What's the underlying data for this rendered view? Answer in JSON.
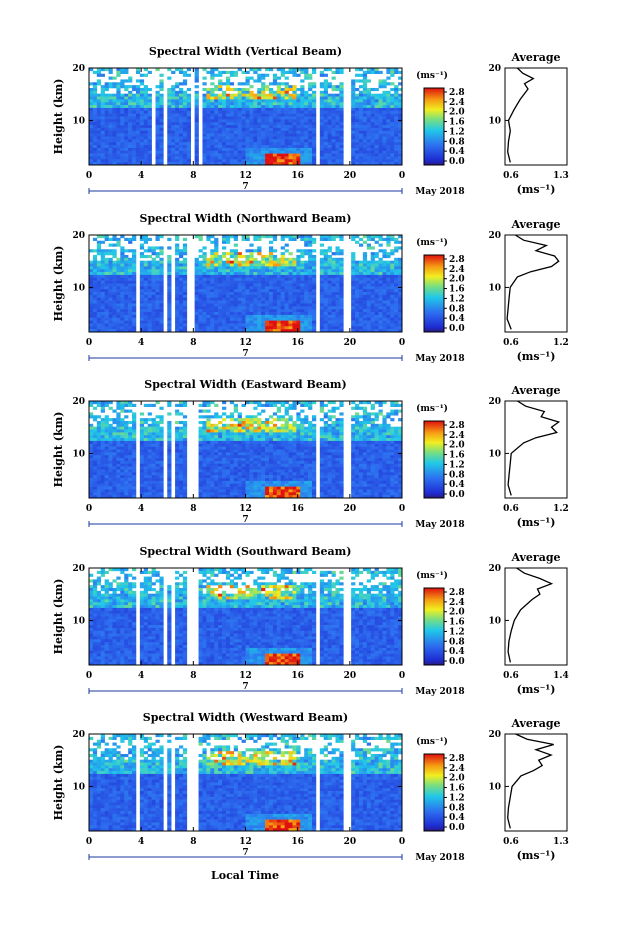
{
  "figure": {
    "xlabel": "Local Time",
    "date_label": "May 2018",
    "day_label": "7",
    "height_label": "Height (km)",
    "avg_title": "Average",
    "unit": "(ms⁻¹)",
    "unit_colorbar": "(ms⁻¹)",
    "x_ticks": [
      "0",
      "4",
      "8",
      "12",
      "16",
      "20",
      "0"
    ],
    "y_ticks": [
      "20",
      "10"
    ],
    "colorbar_ticks": [
      "2.8",
      "2.4",
      "2.0",
      "1.6",
      "1.2",
      "0.8",
      "0.4",
      "0.0"
    ],
    "colors": {
      "low": "#1b2fd6",
      "mid": "#18b8e8",
      "highmid": "#f7e30f",
      "high": "#e6160e"
    }
  },
  "chart_data": [
    {
      "type": "heatmap",
      "title": "Spectral Width (Vertical Beam)",
      "xlabel": "Local Time",
      "ylabel": "Height (km)",
      "xlim": [
        0,
        24
      ],
      "ylim": [
        1.5,
        20
      ],
      "colorbar_range": [
        0.0,
        3.0
      ],
      "gaps_hours": [
        4.9,
        5.9,
        7.9,
        8.5,
        17.6,
        19.8
      ],
      "average": {
        "xlabel": "(ms⁻¹)",
        "xlim": [
          0.6,
          1.3
        ],
        "x_ticks": [
          "0.6",
          "1.3"
        ],
        "heights": [
          2,
          4,
          6,
          8,
          10,
          12,
          14,
          16,
          17,
          18,
          19,
          20
        ],
        "values": [
          0.66,
          0.63,
          0.64,
          0.66,
          0.64,
          0.7,
          0.77,
          0.86,
          0.82,
          0.92,
          0.8,
          0.74
        ]
      }
    },
    {
      "type": "heatmap",
      "title": "Spectral Width (Northward Beam)",
      "xlabel": "Local Time",
      "ylabel": "Height (km)",
      "xlim": [
        0,
        24
      ],
      "ylim": [
        1.5,
        20
      ],
      "colorbar_range": [
        0.0,
        3.0
      ],
      "gaps_hours": [
        3.8,
        5.8,
        6.5,
        7.6,
        8.0,
        17.6,
        19.8
      ],
      "average": {
        "xlabel": "(ms⁻¹)",
        "xlim": [
          0.6,
          1.2
        ],
        "x_ticks": [
          "0.6",
          "1.2"
        ],
        "heights": [
          2,
          4,
          6,
          8,
          10,
          12,
          13,
          14,
          15,
          16,
          17,
          18,
          19,
          20
        ],
        "values": [
          0.66,
          0.62,
          0.63,
          0.64,
          0.65,
          0.72,
          0.85,
          1.05,
          1.12,
          1.08,
          0.9,
          1.0,
          0.78,
          0.7
        ]
      }
    },
    {
      "type": "heatmap",
      "title": "Spectral Width (Eastward Beam)",
      "xlabel": "Local Time",
      "ylabel": "Height (km)",
      "xlim": [
        0,
        24
      ],
      "ylim": [
        1.5,
        20
      ],
      "colorbar_range": [
        0.0,
        3.0
      ],
      "gaps_hours": [
        3.8,
        5.8,
        6.5,
        7.6,
        8.1,
        17.6,
        19.8
      ],
      "average": {
        "xlabel": "(ms⁻¹)",
        "xlim": [
          0.6,
          1.2
        ],
        "x_ticks": [
          "0.6",
          "1.2"
        ],
        "heights": [
          2,
          4,
          6,
          8,
          10,
          12,
          13,
          14,
          15,
          16,
          17,
          18,
          19,
          20
        ],
        "values": [
          0.66,
          0.63,
          0.64,
          0.65,
          0.66,
          0.78,
          0.9,
          1.1,
          1.05,
          1.12,
          0.95,
          0.98,
          0.8,
          0.72
        ]
      }
    },
    {
      "type": "heatmap",
      "title": "Spectral Width (Southward Beam)",
      "xlabel": "Local Time",
      "ylabel": "Height (km)",
      "xlim": [
        0,
        24
      ],
      "ylim": [
        1.5,
        20
      ],
      "colorbar_range": [
        0.0,
        3.0
      ],
      "gaps_hours": [
        3.8,
        5.8,
        6.5,
        7.6,
        8.1,
        17.6,
        19.8
      ],
      "average": {
        "xlabel": "(ms⁻¹)",
        "xlim": [
          0.6,
          1.4
        ],
        "x_ticks": [
          "0.6",
          "1.4"
        ],
        "heights": [
          2,
          4,
          6,
          8,
          10,
          12,
          14,
          15,
          16,
          17,
          18,
          19,
          20
        ],
        "values": [
          0.67,
          0.64,
          0.65,
          0.68,
          0.72,
          0.8,
          0.95,
          1.05,
          1.02,
          1.2,
          1.05,
          0.85,
          0.75
        ]
      }
    },
    {
      "type": "heatmap",
      "title": "Spectral Width (Westward Beam)",
      "xlabel": "Local Time",
      "ylabel": "Height (km)",
      "xlim": [
        0,
        24
      ],
      "ylim": [
        1.5,
        20
      ],
      "colorbar_range": [
        0.0,
        3.0
      ],
      "gaps_hours": [
        3.8,
        5.8,
        6.5,
        7.6,
        8.1,
        17.6,
        19.8
      ],
      "average": {
        "xlabel": "(ms⁻¹)",
        "xlim": [
          0.6,
          1.3
        ],
        "x_ticks": [
          "0.6",
          "1.3"
        ],
        "heights": [
          2,
          4,
          6,
          8,
          10,
          12,
          13,
          14,
          15,
          16,
          17,
          18,
          19,
          20
        ],
        "values": [
          0.66,
          0.63,
          0.64,
          0.66,
          0.68,
          0.78,
          0.92,
          1.02,
          0.98,
          1.12,
          0.95,
          1.15,
          0.85,
          0.72
        ]
      }
    }
  ]
}
